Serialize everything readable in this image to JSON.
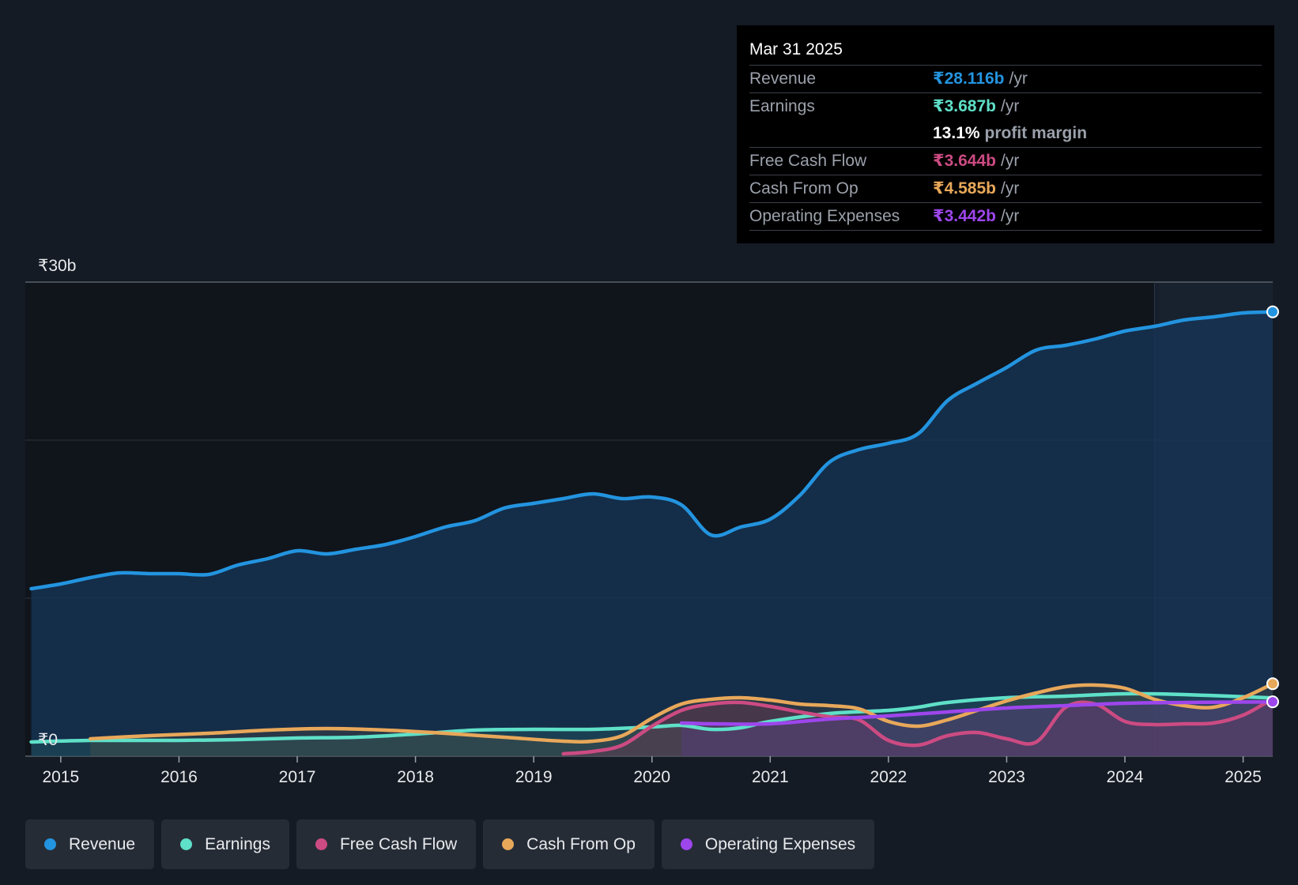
{
  "chart_data": {
    "type": "line",
    "currency": "₹",
    "y_unit": "b",
    "ylim": [
      0,
      30
    ],
    "y_tick_labels": [
      {
        "value": 30,
        "label": "₹30b"
      },
      {
        "value": 0,
        "label": "₹0"
      }
    ],
    "y_gridlines": [
      0,
      10,
      20,
      30
    ],
    "xlim": [
      2014.7,
      2025.25
    ],
    "x_ticks": [
      {
        "value": 2015,
        "label": "2015"
      },
      {
        "value": 2016,
        "label": "2016"
      },
      {
        "value": 2017,
        "label": "2017"
      },
      {
        "value": 2018,
        "label": "2018"
      },
      {
        "value": 2019,
        "label": "2019"
      },
      {
        "value": 2020,
        "label": "2020"
      },
      {
        "value": 2021,
        "label": "2021"
      },
      {
        "value": 2022,
        "label": "2022"
      },
      {
        "value": 2023,
        "label": "2023"
      },
      {
        "value": 2024,
        "label": "2024"
      },
      {
        "value": 2025,
        "label": "2025"
      }
    ],
    "highlight_region": [
      2024.25,
      2025.25
    ],
    "series": [
      {
        "name": "Revenue",
        "color": "#2394df",
        "fill": "#16365a",
        "fill_opacity": 0.75,
        "end_marker": true,
        "points": [
          [
            2014.75,
            10.6
          ],
          [
            2015.0,
            10.9
          ],
          [
            2015.25,
            11.3
          ],
          [
            2015.5,
            11.6
          ],
          [
            2015.75,
            11.55
          ],
          [
            2016.0,
            11.55
          ],
          [
            2016.25,
            11.5
          ],
          [
            2016.5,
            12.1
          ],
          [
            2016.75,
            12.5
          ],
          [
            2017.0,
            13.0
          ],
          [
            2017.25,
            12.8
          ],
          [
            2017.5,
            13.1
          ],
          [
            2017.75,
            13.4
          ],
          [
            2018.0,
            13.9
          ],
          [
            2018.25,
            14.5
          ],
          [
            2018.5,
            14.9
          ],
          [
            2018.75,
            15.7
          ],
          [
            2019.0,
            16.0
          ],
          [
            2019.25,
            16.3
          ],
          [
            2019.5,
            16.6
          ],
          [
            2019.75,
            16.3
          ],
          [
            2020.0,
            16.4
          ],
          [
            2020.25,
            15.9
          ],
          [
            2020.5,
            14.0
          ],
          [
            2020.75,
            14.5
          ],
          [
            2021.0,
            15.0
          ],
          [
            2021.25,
            16.5
          ],
          [
            2021.5,
            18.6
          ],
          [
            2021.75,
            19.4
          ],
          [
            2022.0,
            19.8
          ],
          [
            2022.25,
            20.4
          ],
          [
            2022.5,
            22.5
          ],
          [
            2022.75,
            23.6
          ],
          [
            2023.0,
            24.6
          ],
          [
            2023.25,
            25.7
          ],
          [
            2023.5,
            26.0
          ],
          [
            2023.75,
            26.4
          ],
          [
            2024.0,
            26.9
          ],
          [
            2024.25,
            27.2
          ],
          [
            2024.5,
            27.6
          ],
          [
            2024.75,
            27.8
          ],
          [
            2025.0,
            28.05
          ],
          [
            2025.25,
            28.116
          ]
        ]
      },
      {
        "name": "Earnings",
        "color": "#5fe0c8",
        "fill": "#2a6f6a",
        "fill_opacity": 0.28,
        "end_marker": false,
        "points": [
          [
            2014.75,
            0.9
          ],
          [
            2015.25,
            1.0
          ],
          [
            2016.0,
            1.0
          ],
          [
            2016.5,
            1.05
          ],
          [
            2017.0,
            1.15
          ],
          [
            2017.5,
            1.2
          ],
          [
            2018.0,
            1.4
          ],
          [
            2018.5,
            1.65
          ],
          [
            2019.0,
            1.7
          ],
          [
            2019.5,
            1.7
          ],
          [
            2020.0,
            1.85
          ],
          [
            2020.25,
            1.95
          ],
          [
            2020.5,
            1.7
          ],
          [
            2020.75,
            1.8
          ],
          [
            2021.0,
            2.2
          ],
          [
            2021.5,
            2.7
          ],
          [
            2022.0,
            2.9
          ],
          [
            2022.25,
            3.1
          ],
          [
            2022.5,
            3.4
          ],
          [
            2023.0,
            3.7
          ],
          [
            2023.5,
            3.8
          ],
          [
            2024.0,
            3.95
          ],
          [
            2024.5,
            3.9
          ],
          [
            2025.25,
            3.687
          ]
        ]
      },
      {
        "name": "Free Cash Flow",
        "color": "#cc4b82",
        "fill": "#7a2c57",
        "fill_opacity": 0.35,
        "end_marker": false,
        "points": [
          [
            2019.25,
            0.15
          ],
          [
            2019.5,
            0.3
          ],
          [
            2019.75,
            0.7
          ],
          [
            2020.0,
            1.9
          ],
          [
            2020.25,
            2.9
          ],
          [
            2020.5,
            3.3
          ],
          [
            2020.75,
            3.4
          ],
          [
            2021.0,
            3.15
          ],
          [
            2021.25,
            2.8
          ],
          [
            2021.5,
            2.5
          ],
          [
            2021.75,
            2.3
          ],
          [
            2022.0,
            1.0
          ],
          [
            2022.25,
            0.7
          ],
          [
            2022.5,
            1.3
          ],
          [
            2022.75,
            1.5
          ],
          [
            2023.0,
            1.1
          ],
          [
            2023.25,
            0.9
          ],
          [
            2023.5,
            3.1
          ],
          [
            2023.75,
            3.3
          ],
          [
            2024.0,
            2.2
          ],
          [
            2024.25,
            2.0
          ],
          [
            2024.5,
            2.05
          ],
          [
            2024.75,
            2.1
          ],
          [
            2025.0,
            2.6
          ],
          [
            2025.25,
            3.644
          ]
        ]
      },
      {
        "name": "Cash From Op",
        "color": "#e8a85a",
        "fill": "#8a6a3d",
        "fill_opacity": 0.18,
        "end_marker": true,
        "points": [
          [
            2015.25,
            1.1
          ],
          [
            2015.75,
            1.3
          ],
          [
            2016.25,
            1.45
          ],
          [
            2016.75,
            1.65
          ],
          [
            2017.25,
            1.75
          ],
          [
            2017.75,
            1.65
          ],
          [
            2018.25,
            1.45
          ],
          [
            2018.75,
            1.2
          ],
          [
            2019.25,
            0.95
          ],
          [
            2019.5,
            0.95
          ],
          [
            2019.75,
            1.3
          ],
          [
            2020.0,
            2.4
          ],
          [
            2020.25,
            3.3
          ],
          [
            2020.5,
            3.6
          ],
          [
            2020.75,
            3.7
          ],
          [
            2021.0,
            3.55
          ],
          [
            2021.25,
            3.3
          ],
          [
            2021.5,
            3.2
          ],
          [
            2021.75,
            3.0
          ],
          [
            2022.0,
            2.2
          ],
          [
            2022.25,
            1.9
          ],
          [
            2022.5,
            2.3
          ],
          [
            2022.75,
            2.9
          ],
          [
            2023.0,
            3.5
          ],
          [
            2023.25,
            4.0
          ],
          [
            2023.5,
            4.4
          ],
          [
            2023.75,
            4.5
          ],
          [
            2024.0,
            4.3
          ],
          [
            2024.25,
            3.6
          ],
          [
            2024.5,
            3.2
          ],
          [
            2024.75,
            3.1
          ],
          [
            2025.0,
            3.7
          ],
          [
            2025.25,
            4.585
          ]
        ]
      },
      {
        "name": "Operating Expenses",
        "color": "#9d46ec",
        "fill": "#5a3a8e",
        "fill_opacity": 0.35,
        "end_marker": true,
        "points": [
          [
            2020.25,
            2.1
          ],
          [
            2020.5,
            2.05
          ],
          [
            2021.0,
            2.05
          ],
          [
            2021.5,
            2.35
          ],
          [
            2022.0,
            2.55
          ],
          [
            2022.5,
            2.8
          ],
          [
            2023.0,
            3.05
          ],
          [
            2023.5,
            3.2
          ],
          [
            2024.0,
            3.35
          ],
          [
            2024.5,
            3.4
          ],
          [
            2025.25,
            3.442
          ]
        ]
      }
    ]
  },
  "tooltip": {
    "date": "Mar 31 2025",
    "rows": [
      {
        "label": "Revenue",
        "value": "₹28.116b",
        "unit": "/yr",
        "color": "#2394df"
      },
      {
        "label": "Earnings",
        "value": "₹3.687b",
        "unit": "/yr",
        "color": "#5fe0c8"
      },
      {
        "label": "",
        "value": "13.1%",
        "unit": "profit margin",
        "color": "#ffffff"
      },
      {
        "label": "Free Cash Flow",
        "value": "₹3.644b",
        "unit": "/yr",
        "color": "#cc4b82"
      },
      {
        "label": "Cash From Op",
        "value": "₹4.585b",
        "unit": "/yr",
        "color": "#e8a85a"
      },
      {
        "label": "Operating Expenses",
        "value": "₹3.442b",
        "unit": "/yr",
        "color": "#9d46ec"
      }
    ]
  },
  "legend": [
    {
      "label": "Revenue",
      "color": "#2394df"
    },
    {
      "label": "Earnings",
      "color": "#5fe0c8"
    },
    {
      "label": "Free Cash Flow",
      "color": "#cc4b82"
    },
    {
      "label": "Cash From Op",
      "color": "#e8a85a"
    },
    {
      "label": "Operating Expenses",
      "color": "#9d46ec"
    }
  ]
}
